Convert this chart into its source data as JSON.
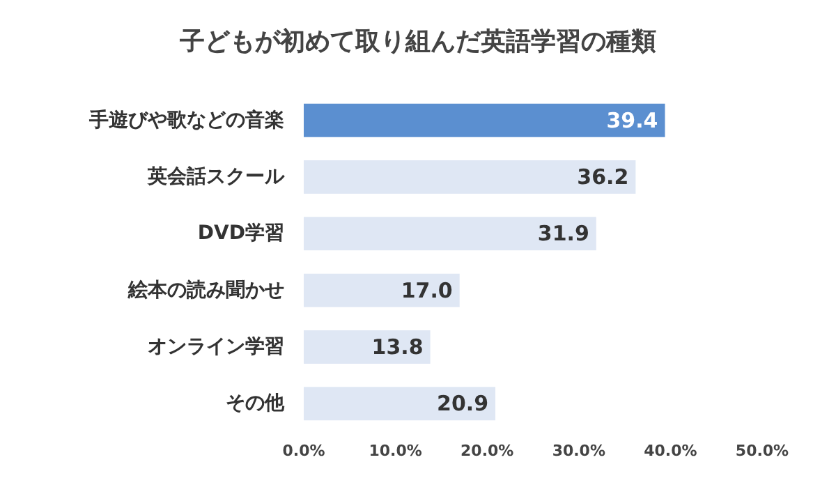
{
  "chart_data": {
    "type": "bar",
    "orientation": "horizontal",
    "title": "子どもが初めて取り組んだ英語学習の種類",
    "categories": [
      "手遊びや歌などの音楽",
      "英会話スクール",
      "DVD学習",
      "絵本の読み聞かせ",
      "オンライン学習",
      "その他"
    ],
    "values": [
      39.4,
      36.2,
      31.9,
      17.0,
      13.8,
      20.9
    ],
    "colors": [
      "#5b8fd0",
      "#dfe7f4",
      "#dfe7f4",
      "#dfe7f4",
      "#dfe7f4",
      "#dfe7f4"
    ],
    "value_labels": [
      "39.4",
      "36.2",
      "31.9",
      "17.0",
      "13.8",
      "20.9"
    ],
    "xlim": [
      0,
      50
    ],
    "xticks": [
      {
        "value": 0,
        "label": "0.0%"
      },
      {
        "value": 10,
        "label": "10.0%"
      },
      {
        "value": 20,
        "label": "20.0%"
      },
      {
        "value": 30,
        "label": "30.0%"
      },
      {
        "value": 40,
        "label": "40.0%"
      },
      {
        "value": 50,
        "label": "50.0%"
      }
    ],
    "grid": false
  }
}
